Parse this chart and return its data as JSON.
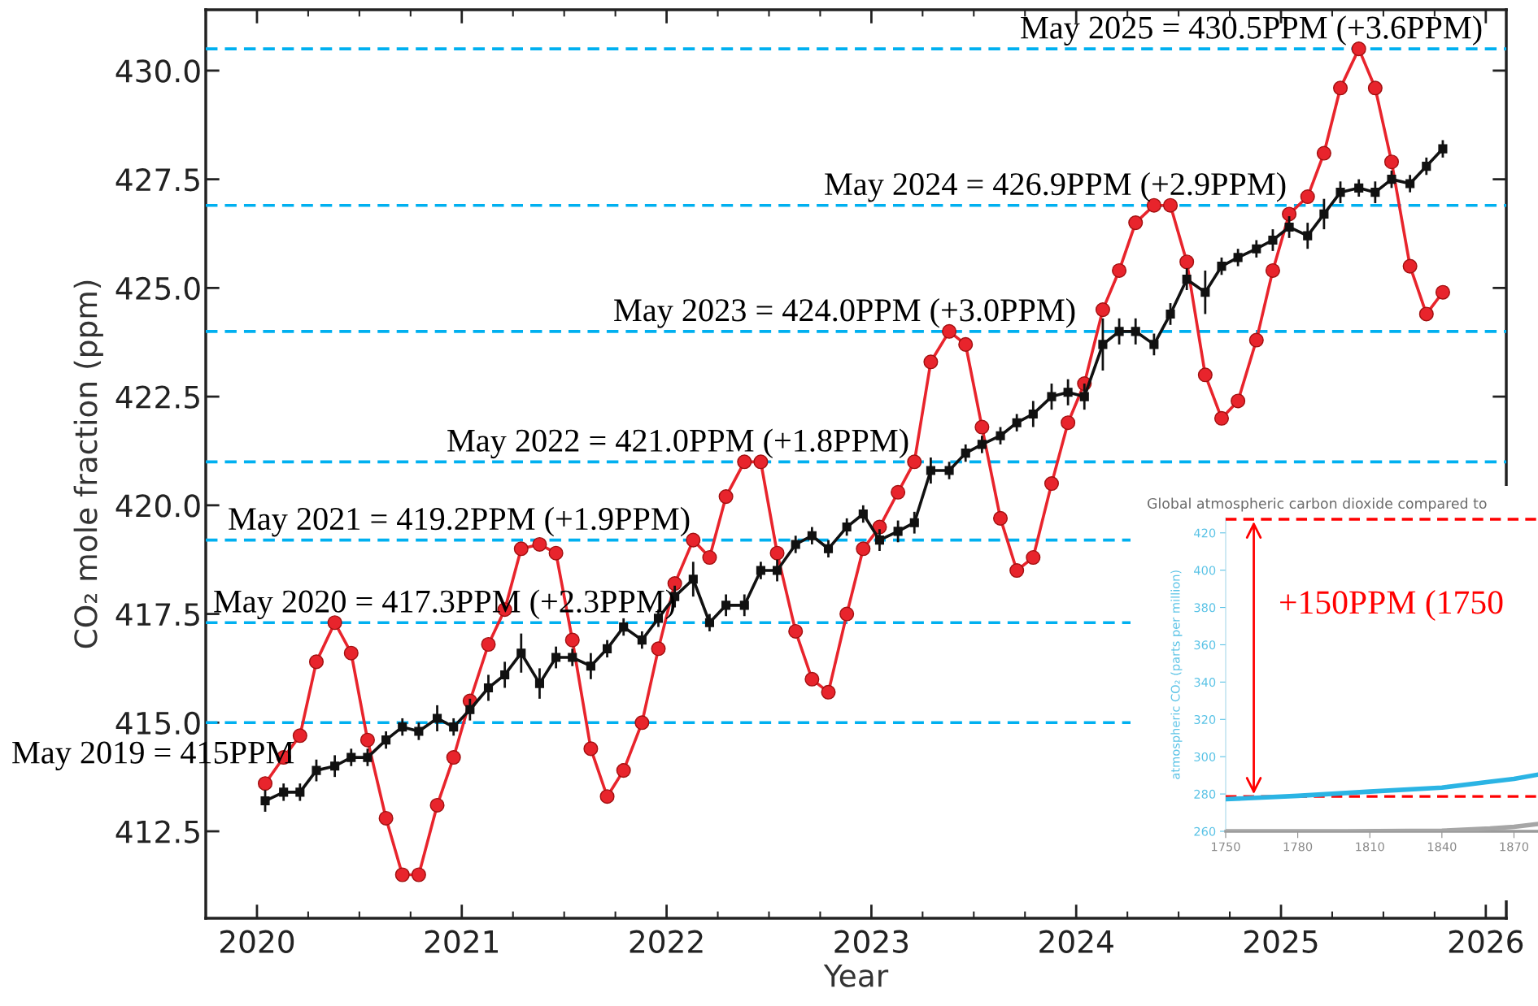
{
  "chart_data": [
    {
      "type": "line",
      "xlabel": "Year",
      "ylabel": "CO₂ mole fraction (ppm)",
      "x": [
        2020.04,
        2020.13,
        2020.21,
        2020.29,
        2020.38,
        2020.46,
        2020.54,
        2020.63,
        2020.71,
        2020.79,
        2020.88,
        2020.96,
        2021.04,
        2021.13,
        2021.21,
        2021.29,
        2021.38,
        2021.46,
        2021.54,
        2021.63,
        2021.71,
        2021.79,
        2021.88,
        2021.96,
        2022.04,
        2022.13,
        2022.21,
        2022.29,
        2022.38,
        2022.46,
        2022.54,
        2022.63,
        2022.71,
        2022.79,
        2022.88,
        2022.96,
        2023.04,
        2023.13,
        2023.21,
        2023.29,
        2023.38,
        2023.46,
        2023.54,
        2023.63,
        2023.71,
        2023.79,
        2023.88,
        2023.96,
        2024.04,
        2024.13,
        2024.21,
        2024.29,
        2024.38,
        2024.46,
        2024.54,
        2024.63,
        2024.71,
        2024.79,
        2024.88,
        2024.96,
        2025.04,
        2025.13,
        2025.21,
        2025.29,
        2025.38,
        2025.46,
        2025.54,
        2025.63,
        2025.71,
        2025.79
      ],
      "series": [
        {
          "color": "#e8242c",
          "marker": "circle",
          "values": [
            413.6,
            414.2,
            414.7,
            416.4,
            417.3,
            416.6,
            414.6,
            412.8,
            411.5,
            411.5,
            413.1,
            414.2,
            415.5,
            416.8,
            417.6,
            419.0,
            419.1,
            418.9,
            416.9,
            414.4,
            413.3,
            413.9,
            415.0,
            416.7,
            418.2,
            419.2,
            418.8,
            420.2,
            421.0,
            421.0,
            418.9,
            417.1,
            416.0,
            415.7,
            417.5,
            419.0,
            419.5,
            420.3,
            421.0,
            423.3,
            424.0,
            423.7,
            421.8,
            419.7,
            418.5,
            418.8,
            420.5,
            421.9,
            422.8,
            424.5,
            425.4,
            426.5,
            426.9,
            426.9,
            425.6,
            423.0,
            422.0,
            422.4,
            423.8,
            425.4,
            426.7,
            427.1,
            428.1,
            429.6,
            430.5,
            429.6,
            427.9,
            425.5,
            424.4,
            424.9
          ]
        },
        {
          "color": "#111111",
          "marker": "square",
          "values": [
            413.2,
            413.4,
            413.4,
            413.9,
            414.0,
            414.2,
            414.2,
            414.6,
            414.9,
            414.8,
            415.1,
            414.9,
            415.3,
            415.8,
            416.1,
            416.6,
            415.9,
            416.5,
            416.5,
            416.3,
            416.7,
            417.2,
            416.9,
            417.4,
            417.9,
            418.3,
            417.3,
            417.7,
            417.7,
            418.5,
            418.5,
            419.1,
            419.3,
            419.0,
            419.5,
            419.8,
            419.2,
            419.4,
            419.6,
            420.8,
            420.8,
            421.2,
            421.4,
            421.6,
            421.9,
            422.1,
            422.5,
            422.6,
            422.5,
            423.7,
            424.0,
            424.0,
            423.7,
            424.4,
            425.2,
            424.9,
            425.5,
            425.7,
            425.9,
            426.1,
            426.4,
            426.2,
            426.7,
            427.2,
            427.3,
            427.2,
            427.5,
            427.4,
            427.8,
            428.2
          ],
          "errors": [
            0.25,
            0.2,
            0.2,
            0.25,
            0.25,
            0.2,
            0.2,
            0.2,
            0.2,
            0.2,
            0.3,
            0.2,
            0.25,
            0.3,
            0.3,
            0.45,
            0.35,
            0.25,
            0.2,
            0.3,
            0.2,
            0.2,
            0.2,
            0.2,
            0.25,
            0.4,
            0.2,
            0.25,
            0.25,
            0.2,
            0.25,
            0.2,
            0.2,
            0.2,
            0.2,
            0.2,
            0.25,
            0.25,
            0.25,
            0.3,
            0.2,
            0.2,
            0.2,
            0.2,
            0.2,
            0.3,
            0.3,
            0.3,
            0.3,
            0.6,
            0.3,
            0.3,
            0.25,
            0.25,
            0.25,
            0.5,
            0.2,
            0.2,
            0.2,
            0.25,
            0.25,
            0.3,
            0.35,
            0.25,
            0.2,
            0.25,
            0.2,
            0.2,
            0.2,
            0.2
          ]
        }
      ],
      "xlim": [
        2019.75,
        2026.1
      ],
      "ylim": [
        410.5,
        431.4
      ],
      "xticks": [
        2020,
        2021,
        2022,
        2023,
        2024,
        2025,
        2026
      ],
      "yticks": [
        {
          "value": 412.5,
          "label": "412.5"
        },
        {
          "value": 415.0,
          "label": "415.0"
        },
        {
          "value": 417.5,
          "label": "417.5"
        },
        {
          "value": 420.0,
          "label": "420.0"
        },
        {
          "value": 422.5,
          "label": "422.5"
        },
        {
          "value": 425.0,
          "label": "425.0"
        },
        {
          "value": 427.5,
          "label": "427.5"
        },
        {
          "value": 430.0,
          "label": "430.0"
        }
      ],
      "ref_lines": [
        {
          "axis": "y",
          "value": 415.0,
          "label": "May 2019 = 415PPM",
          "color": "#00b0f0",
          "line_style": "dashed"
        },
        {
          "axis": "y",
          "value": 417.3,
          "label": "May 2020 = 417.3PPM (+2.3PPM)",
          "color": "#00b0f0",
          "line_style": "dashed"
        },
        {
          "axis": "y",
          "value": 419.2,
          "label": "May 2021 = 419.2PPM (+1.9PPM)",
          "color": "#00b0f0",
          "line_style": "dashed"
        },
        {
          "axis": "y",
          "value": 421.0,
          "label": "May 2022 = 421.0PPM (+1.8PPM)",
          "color": "#00b0f0",
          "line_style": "dashed"
        },
        {
          "axis": "y",
          "value": 424.0,
          "label": "May 2023 = 424.0PPM (+3.0PPM)",
          "color": "#00b0f0",
          "line_style": "dashed"
        },
        {
          "axis": "y",
          "value": 426.9,
          "label": "May 2024 = 426.9PPM (+2.9PPM)",
          "color": "#00b0f0",
          "line_style": "dashed"
        },
        {
          "axis": "y",
          "value": 430.5,
          "label": "May 2025 = 430.5PPM (+3.6PPM)",
          "color": "#00b0f0",
          "line_style": "dashed"
        }
      ]
    },
    {
      "type": "line",
      "title": "Global atmospheric carbon dioxide compared to",
      "ylabel": "atmospheric CO₂ (parts per million)",
      "series": [
        {
          "color": "#2bb4e4",
          "x": [
            1750,
            1780,
            1810,
            1840,
            1860,
            1870,
            1880
          ],
          "values": [
            277.2,
            279.0,
            281.3,
            283.4,
            286.6,
            288.1,
            290.4
          ]
        },
        {
          "color": "#a6a6a6",
          "x": [
            1750,
            1800,
            1840,
            1860,
            1870,
            1880
          ],
          "values": [
            260.0,
            260.0,
            260.3,
            261.5,
            262.4,
            263.9
          ]
        }
      ],
      "xlim": [
        1750,
        1880
      ],
      "ylim": [
        260,
        428
      ],
      "xticks": [
        1750,
        1780,
        1810,
        1840,
        1870
      ],
      "yticks": [
        260,
        280,
        300,
        320,
        340,
        360,
        380,
        400,
        420
      ],
      "ref_lines": [
        {
          "axis": "y",
          "value": 427.3,
          "color": "#ff0000",
          "line_style": "dashed"
        },
        {
          "axis": "y",
          "value": 278.7,
          "color": "#ff0000",
          "line_style": "dashed"
        }
      ],
      "annotations": [
        "+150PPM (1750"
      ]
    }
  ]
}
